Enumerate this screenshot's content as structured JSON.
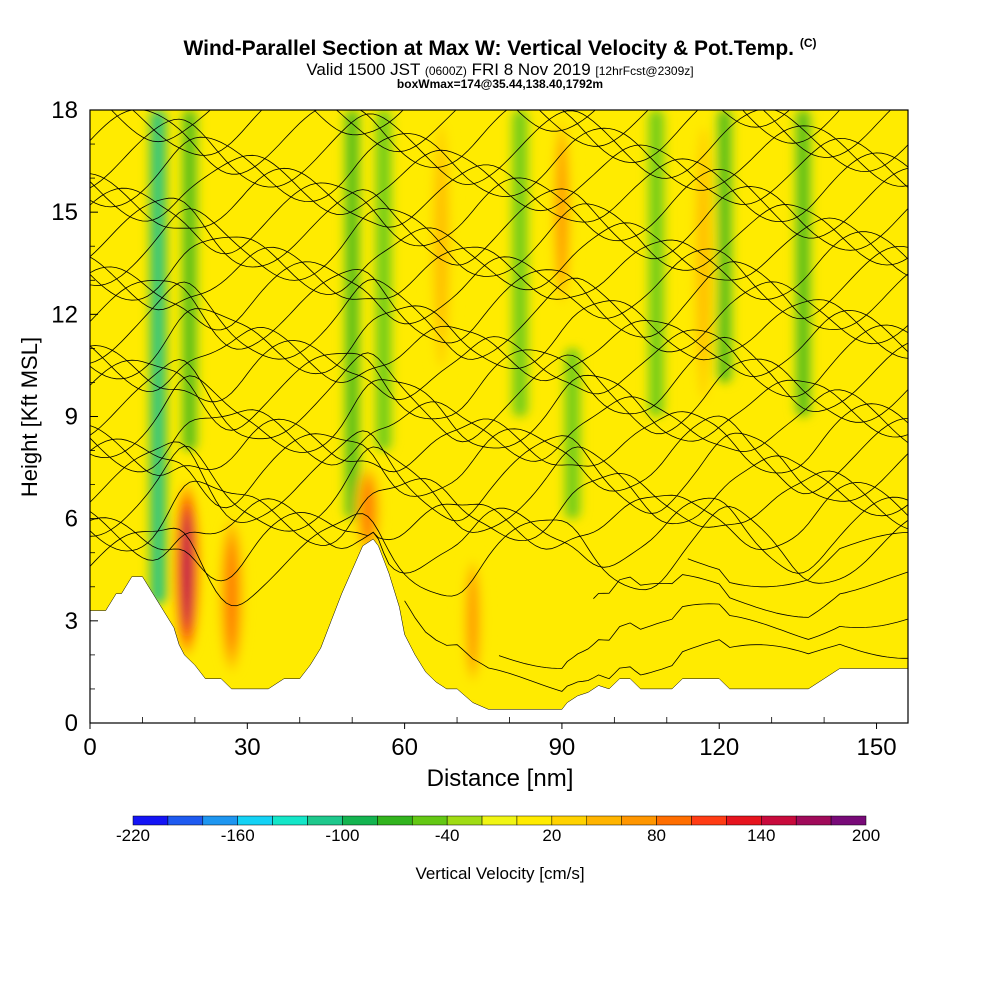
{
  "header": {
    "title": "Wind-Parallel Section at Max W: Vertical Velocity & Pot.Temp.",
    "title_mark": "(C)",
    "subtitle_pre": "Valid 1500 JST",
    "subtitle_zulu": "(0600Z)",
    "subtitle_mid": "FRI 8 Nov 2019",
    "subtitle_fcst": "[12hrFcst@2309z]",
    "subline": "boxWmax=174@35.44,138.40,1792m"
  },
  "chart_data": {
    "type": "heatmap",
    "xlabel": "Distance [nm]",
    "ylabel": "Height [Kft MSL]",
    "xlim": [
      0,
      156
    ],
    "ylim": [
      0,
      18
    ],
    "xticks": [
      0,
      30,
      60,
      90,
      120,
      150
    ],
    "yticks": [
      0,
      3,
      6,
      9,
      12,
      15,
      18
    ],
    "colorbar": {
      "title": "Vertical Velocity [cm/s]",
      "tick_labels": [
        "-220",
        "-160",
        "-100",
        "-40",
        "20",
        "80",
        "140",
        "200"
      ],
      "tick_values": [
        -220,
        -160,
        -100,
        -40,
        20,
        80,
        140,
        200
      ],
      "levels": [
        -220,
        -200,
        -180,
        -160,
        -140,
        -120,
        -100,
        -80,
        -60,
        -40,
        -20,
        0,
        20,
        40,
        60,
        80,
        100,
        120,
        140,
        160,
        180,
        200
      ],
      "colors": [
        "#1414f5",
        "#1e5af0",
        "#1e96f0",
        "#14d2f5",
        "#14e6c8",
        "#1ec88c",
        "#14b450",
        "#32b41e",
        "#64c814",
        "#a0dc14",
        "#f0f514",
        "#ffeb00",
        "#ffd200",
        "#ffb400",
        "#ff9600",
        "#ff6e00",
        "#ff3c14",
        "#e6141e",
        "#c80a3c",
        "#a00a5a",
        "#780a78"
      ]
    },
    "terrain_height_kft": [
      [
        0,
        3.3
      ],
      [
        3,
        3.3
      ],
      [
        5,
        3.8
      ],
      [
        6,
        3.8
      ],
      [
        8,
        4.3
      ],
      [
        10,
        4.3
      ],
      [
        12,
        3.8
      ],
      [
        14,
        3.3
      ],
      [
        16,
        2.8
      ],
      [
        17,
        2.3
      ],
      [
        18,
        2.0
      ],
      [
        20,
        1.7
      ],
      [
        22,
        1.3
      ],
      [
        25,
        1.3
      ],
      [
        27,
        1.0
      ],
      [
        34,
        1.0
      ],
      [
        37,
        1.3
      ],
      [
        40,
        1.3
      ],
      [
        42,
        1.7
      ],
      [
        44,
        2.2
      ],
      [
        46,
        3.0
      ],
      [
        48,
        3.8
      ],
      [
        50,
        4.5
      ],
      [
        52,
        5.2
      ],
      [
        54,
        5.4
      ],
      [
        55,
        5.2
      ],
      [
        57,
        4.4
      ],
      [
        59,
        3.4
      ],
      [
        60,
        2.6
      ],
      [
        62,
        2.0
      ],
      [
        64,
        1.5
      ],
      [
        66,
        1.2
      ],
      [
        68,
        1.0
      ],
      [
        70,
        1.0
      ],
      [
        73,
        0.6
      ],
      [
        76,
        0.4
      ],
      [
        84,
        0.4
      ],
      [
        90,
        0.4
      ],
      [
        91,
        0.6
      ],
      [
        93,
        0.8
      ],
      [
        95,
        0.9
      ],
      [
        97,
        1.1
      ],
      [
        99,
        1.0
      ],
      [
        101,
        1.3
      ],
      [
        103,
        1.3
      ],
      [
        105,
        1.0
      ],
      [
        111,
        1.0
      ],
      [
        113,
        1.3
      ],
      [
        120,
        1.3
      ],
      [
        122,
        1.0
      ],
      [
        137,
        1.0
      ],
      [
        140,
        1.3
      ],
      [
        143,
        1.6
      ],
      [
        156,
        1.6
      ]
    ],
    "updraft_cores": [
      {
        "x": 18.5,
        "z_bottom": 2.0,
        "z_top": 7.0,
        "w_max": 174
      },
      {
        "x": 27.0,
        "z_bottom": 1.5,
        "z_top": 6.0,
        "w_max": 80
      },
      {
        "x": 53.0,
        "z_bottom": 5.0,
        "z_top": 7.5,
        "w_max": 80
      },
      {
        "x": 73.0,
        "z_bottom": 1.0,
        "z_top": 5.0,
        "w_max": 70
      },
      {
        "x": 67.0,
        "z_bottom": 10.0,
        "z_top": 18.0,
        "w_max": 50
      },
      {
        "x": 90.0,
        "z_bottom": 12.0,
        "z_top": 18.0,
        "w_max": 70
      },
      {
        "x": 117.0,
        "z_bottom": 9.0,
        "z_top": 18.0,
        "w_max": 50
      }
    ],
    "downdraft_bands": [
      {
        "x": 13.0,
        "z_bottom": 3.5,
        "z_top": 18.0,
        "w_min": -120
      },
      {
        "x": 19.0,
        "z_bottom": 8.0,
        "z_top": 18.0,
        "w_min": -80
      },
      {
        "x": 50.0,
        "z_bottom": 6.0,
        "z_top": 18.0,
        "w_min": -80
      },
      {
        "x": 56.0,
        "z_bottom": 8.0,
        "z_top": 18.0,
        "w_min": -60
      },
      {
        "x": 82.0,
        "z_bottom": 9.0,
        "z_top": 18.0,
        "w_min": -60
      },
      {
        "x": 92.0,
        "z_bottom": 6.0,
        "z_top": 11.0,
        "w_min": -50
      },
      {
        "x": 108.0,
        "z_bottom": 9.0,
        "z_top": 18.0,
        "w_min": -50
      },
      {
        "x": 121.0,
        "z_bottom": 10.0,
        "z_top": 18.0,
        "w_min": -70
      },
      {
        "x": 136.0,
        "z_bottom": 9.0,
        "z_top": 18.0,
        "w_min": -80
      }
    ]
  }
}
